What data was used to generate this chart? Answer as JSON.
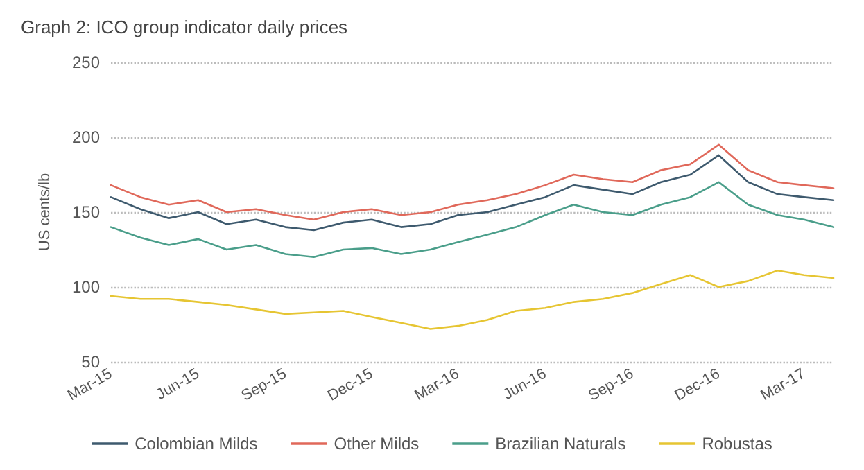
{
  "chart_data": {
    "type": "line",
    "title": "Graph 2: ICO group indicator daily prices",
    "ylabel": "US cents/lb",
    "x": [
      "2015-03",
      "2015-04",
      "2015-05",
      "2015-06",
      "2015-07",
      "2015-08",
      "2015-09",
      "2015-10",
      "2015-11",
      "2015-12",
      "2016-01",
      "2016-02",
      "2016-03",
      "2016-04",
      "2016-05",
      "2016-06",
      "2016-07",
      "2016-08",
      "2016-09",
      "2016-10",
      "2016-11",
      "2016-12",
      "2017-01",
      "2017-02",
      "2017-03",
      "2017-04"
    ],
    "series": [
      {
        "name": "Colombian Milds",
        "color": "#3e5a6e",
        "values": [
          160,
          152,
          146,
          150,
          142,
          145,
          140,
          138,
          143,
          145,
          140,
          142,
          148,
          150,
          155,
          160,
          168,
          165,
          162,
          170,
          175,
          188,
          170,
          162,
          160,
          158
        ]
      },
      {
        "name": "Other Milds",
        "color": "#e0685a",
        "values": [
          168,
          160,
          155,
          158,
          150,
          152,
          148,
          145,
          150,
          152,
          148,
          150,
          155,
          158,
          162,
          168,
          175,
          172,
          170,
          178,
          182,
          195,
          178,
          170,
          168,
          166
        ]
      },
      {
        "name": "Brazilian Naturals",
        "color": "#4a9e8a",
        "values": [
          140,
          133,
          128,
          132,
          125,
          128,
          122,
          120,
          125,
          126,
          122,
          125,
          130,
          135,
          140,
          148,
          155,
          150,
          148,
          155,
          160,
          170,
          155,
          148,
          145,
          140
        ]
      },
      {
        "name": "Robustas",
        "color": "#e6c532",
        "values": [
          94,
          92,
          92,
          90,
          88,
          85,
          82,
          83,
          84,
          80,
          76,
          72,
          74,
          78,
          84,
          86,
          90,
          92,
          96,
          102,
          108,
          100,
          104,
          111,
          108,
          106
        ]
      }
    ],
    "xlim": [
      "2015-03",
      "2017-04"
    ],
    "xticks": [
      {
        "value": "2015-03",
        "label": "Mar-15"
      },
      {
        "value": "2015-06",
        "label": "Jun-15"
      },
      {
        "value": "2015-09",
        "label": "Sep-15"
      },
      {
        "value": "2015-12",
        "label": "Dec-15"
      },
      {
        "value": "2016-03",
        "label": "Mar-16"
      },
      {
        "value": "2016-06",
        "label": "Jun-16"
      },
      {
        "value": "2016-09",
        "label": "Sep-16"
      },
      {
        "value": "2016-12",
        "label": "Dec-16"
      },
      {
        "value": "2017-03",
        "label": "Mar-17"
      }
    ],
    "ylim": [
      50,
      250
    ],
    "yticks": [
      50,
      100,
      150,
      200,
      250
    ],
    "grid": "y",
    "legend": "bottom",
    "marker": "none",
    "line_style": "solid"
  }
}
